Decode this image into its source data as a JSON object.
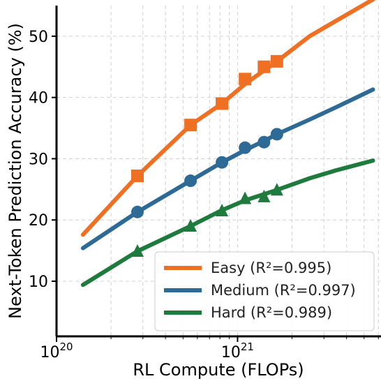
{
  "chart_data": {
    "type": "line",
    "xlabel": "RL Compute (FLOPs)",
    "ylabel": "Next-Token Prediction Accuracy (%)",
    "xscale": "log",
    "xlim": [
      1e+20,
      6.2e+21
    ],
    "ylim": [
      1,
      55
    ],
    "x_ticks": [
      {
        "value": 1e+20,
        "base": "10",
        "exp": "20"
      },
      {
        "value": 1e+21,
        "base": "10",
        "exp": "21"
      }
    ],
    "y_ticks": [
      10,
      20,
      30,
      40,
      50
    ],
    "grid": true,
    "legend_position": "bottom-right",
    "series": [
      {
        "name": "Easy (R²=0.995)",
        "color": "#f07023",
        "marker": "square",
        "points": {
          "x": [
            2.8e+20,
            5.5e+20,
            8.2e+20,
            1.1e+21,
            1.4e+21,
            1.65e+21
          ],
          "y": [
            27.2,
            35.5,
            39.0,
            43.0,
            45.0,
            45.9
          ]
        },
        "fit": {
          "x": [
            1.4e+20,
            2.8e+20,
            5.5e+20,
            8.2e+20,
            1.1e+21,
            1.4e+21,
            1.65e+21,
            2.5e+21,
            3.5e+21,
            5.6e+21
          ],
          "y": [
            17.6,
            27.2,
            35.5,
            39.0,
            42.2,
            44.4,
            45.9,
            50.0,
            52.5,
            56.0
          ]
        }
      },
      {
        "name": "Medium (R²=0.997)",
        "color": "#2e6a96",
        "marker": "circle",
        "points": {
          "x": [
            2.8e+20,
            5.5e+20,
            8.2e+20,
            1.1e+21,
            1.4e+21,
            1.65e+21
          ],
          "y": [
            21.3,
            26.4,
            29.4,
            31.8,
            32.7,
            34.0
          ]
        },
        "fit": {
          "x": [
            1.4e+20,
            2.8e+20,
            5.5e+20,
            8.2e+20,
            1.1e+21,
            1.4e+21,
            1.65e+21,
            2.5e+21,
            3.5e+21,
            5.6e+21
          ],
          "y": [
            15.4,
            21.3,
            26.4,
            29.4,
            31.4,
            32.9,
            34.0,
            36.4,
            38.4,
            41.3
          ]
        }
      },
      {
        "name": "Hard (R²=0.989)",
        "color": "#1f7a3e",
        "marker": "triangle",
        "points": {
          "x": [
            2.8e+20,
            5.5e+20,
            8.2e+20,
            1.1e+21,
            1.4e+21,
            1.65e+21
          ],
          "y": [
            14.9,
            19.0,
            21.5,
            23.5,
            23.8,
            24.9
          ]
        },
        "fit": {
          "x": [
            1.4e+20,
            2.8e+20,
            5.5e+20,
            8.2e+20,
            1.1e+21,
            1.4e+21,
            1.65e+21,
            2.5e+21,
            3.5e+21,
            5.6e+21
          ],
          "y": [
            9.4,
            14.9,
            19.0,
            21.6,
            23.2,
            24.2,
            24.9,
            26.8,
            28.1,
            29.7
          ]
        }
      }
    ]
  }
}
